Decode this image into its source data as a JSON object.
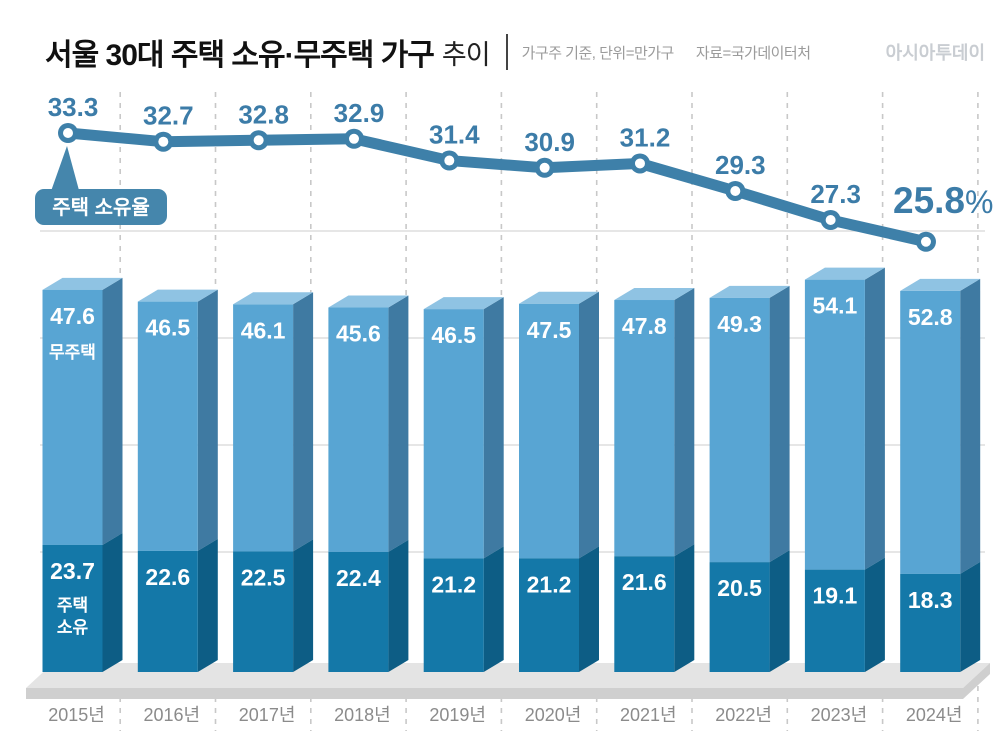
{
  "header": {
    "title_bold": "서울 30대 주택 소유·무주택 가구",
    "title_light": "추이",
    "subtitle": "가구주 기준, 단위=만가구",
    "source": "자료=국가데이터처",
    "logo": "아시아투데이"
  },
  "chart_data": {
    "type": "bar",
    "subtype": "3d-stacked-bars-with-line",
    "categories": [
      "2015년",
      "2016년",
      "2017년",
      "2018년",
      "2019년",
      "2020년",
      "2021년",
      "2022년",
      "2023년",
      "2024년"
    ],
    "series": [
      {
        "name": "무주택",
        "type": "bar",
        "stack_position": "top",
        "values": [
          47.6,
          46.5,
          46.1,
          45.6,
          46.5,
          47.5,
          47.8,
          49.3,
          54.1,
          52.8
        ]
      },
      {
        "name": "주택 소유",
        "type": "bar",
        "stack_position": "bottom",
        "values": [
          23.7,
          22.6,
          22.5,
          22.4,
          21.2,
          21.2,
          21.6,
          20.5,
          19.1,
          18.3
        ]
      },
      {
        "name": "주택 소유율",
        "type": "line",
        "unit": "%",
        "values": [
          33.3,
          32.7,
          32.8,
          32.9,
          31.4,
          30.9,
          31.2,
          29.3,
          27.3,
          25.8
        ]
      }
    ],
    "annotations": {
      "line_callout": "주택 소유율",
      "last_value": "25.8",
      "last_value_suffix": "%",
      "bar_top_segment_label": "무주택",
      "bar_bottom_segment_label": "주택 소유"
    },
    "grid": {
      "horizontal_lines": true,
      "vertical_dashed_lines": true
    },
    "legend_position": "on-chart-callouts",
    "colors": {
      "line": "#3e80a9",
      "line_label": "#3c7ca8",
      "marker_hole": "#ffffff",
      "bar_light_front": "#58a5d3",
      "bar_light_top": "#8fc3e3",
      "bar_light_side": "#3f7aa2",
      "bar_dark_front": "#1478a8",
      "bar_dark_side": "#0d5d85",
      "bar_label_text": "#ffffff",
      "callout_bg": "#4586ac",
      "callout_text": "#ffffff",
      "platform_top": "#e4e4e4",
      "platform_front": "#cfcfcf",
      "gridline": "#d6d6d6",
      "dashed_line": "#c8c8c8",
      "year_label": "#8b8b8b"
    }
  }
}
